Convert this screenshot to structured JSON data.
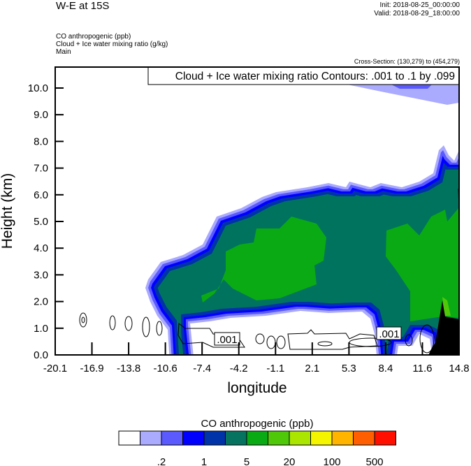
{
  "header": {
    "title": "W-E at 15S",
    "init": "Init: 2018-08-25_00:00:00",
    "valid": "Valid: 2018-08-29_18:00:00",
    "fields": [
      "CO anthropogenic   (ppb)",
      "Cloud + Ice water mixing ratio   (g/kg)",
      "Main"
    ],
    "cross_section": "Cross-Section: (130,279) to (454,279)"
  },
  "chart_data": {
    "type": "heatmap",
    "title": "W-E at 15S",
    "xlabel": "longitude",
    "ylabel": "Height (km)",
    "xlim": [
      -20.1,
      14.8
    ],
    "ylim": [
      0,
      10.8
    ],
    "x_ticks": [
      "-20.1",
      "-16.9",
      "-13.8",
      "-10.6",
      "-7.4",
      "-4.2",
      "-1.1",
      "2.1",
      "5.3",
      "8.4",
      "11.6",
      "14.8"
    ],
    "y_ticks": [
      "0.0",
      "1.0",
      "2.0",
      "3.0",
      "4.0",
      "5.0",
      "6.0",
      "7.0",
      "8.0",
      "9.0",
      "10.0"
    ],
    "contour_info": "Cloud + Ice water mixing ratio Contours: .001 to .1 by .099",
    "contour_labels": [
      ".001",
      ".001"
    ],
    "colorbar": {
      "title": "CO anthropogenic  (ppb)",
      "colors": [
        "#ffffff",
        "#aaaaff",
        "#5a5aff",
        "#0000ff",
        "#0033aa",
        "#05735f",
        "#0aaa14",
        "#50c80a",
        "#aae600",
        "#f5f500",
        "#ffb400",
        "#ff5f00",
        "#ff0f00"
      ],
      "labels": [
        ".2",
        "1",
        "5",
        "20",
        "100",
        "500"
      ]
    }
  }
}
